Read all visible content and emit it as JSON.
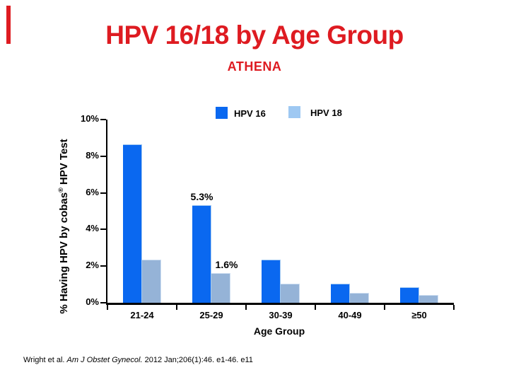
{
  "slide": {
    "title": "HPV 16/18 by Age Group",
    "subtitle": "ATHENA",
    "title_color": "#de1b21",
    "footer": {
      "plain_before": "Wright et al. ",
      "italic": "Am J Obstet Gynecol.",
      "plain_after": " 2012 Jan;206(1):46. e1-46. e11"
    }
  },
  "chart_data": {
    "type": "bar",
    "title": "HPV 16/18 by Age Group",
    "subtitle": "ATHENA",
    "categories": [
      "21-24",
      "25-29",
      "30-39",
      "40-49",
      "≥50"
    ],
    "series": [
      {
        "name": "HPV 16",
        "color": "#0a68f0",
        "border_color": "#a5cbf2",
        "legend_color": "#0a68f0",
        "values": [
          8.6,
          5.3,
          2.3,
          1.0,
          0.8
        ],
        "labels": [
          "",
          "5.3%",
          "",
          "",
          ""
        ]
      },
      {
        "name": "HPV 18",
        "color": "#95b3d7",
        "border_color": "#cfdff2",
        "legend_color": "#9ec8f2",
        "values": [
          2.3,
          1.6,
          1.0,
          0.5,
          0.4
        ],
        "labels": [
          "",
          "1.6%",
          "",
          "",
          ""
        ]
      }
    ],
    "ylabel": {
      "prefix": "% Having HPV by cobas",
      "sup": "®",
      "suffix": " HPV Test"
    },
    "xlabel": "Age Group",
    "ylim": [
      0,
      10
    ],
    "yticks": [
      {
        "v": 10,
        "label": "10%"
      },
      {
        "v": 8,
        "label": "8%"
      },
      {
        "v": 6,
        "label": "6%"
      },
      {
        "v": 4,
        "label": "4%"
      },
      {
        "v": 2,
        "label": "2%"
      },
      {
        "v": 0,
        "label": "0%"
      }
    ],
    "legend_position": "top",
    "grid": false
  }
}
